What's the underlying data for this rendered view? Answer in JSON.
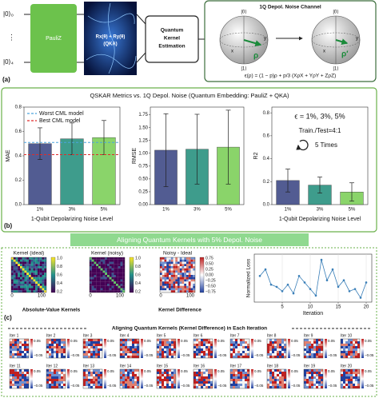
{
  "panel_a": {
    "label": "(a)",
    "qubit_top": "|0⟩₀",
    "qubit_dots": "⋮",
    "qubit_bottom": "|0⟩₄",
    "encoding": "PauliZ",
    "ansatz": "Rx(θ) + Ry(θ)",
    "ansatz_sub": "(QKA)",
    "estimation": [
      "Quantum",
      "Kernel",
      "Estimation"
    ],
    "noise_title": "1Q Depol. Noise Channel",
    "ket0": "|0⟩",
    "ket1": "|1⟩",
    "axis_x": "x",
    "axis_y": "y",
    "rho": "ρ",
    "rho_prime": "ρ′",
    "formula": "ϵ(ρ) = (1 − p)ρ + p/3 (XρX + YρY + ZρZ)"
  },
  "panel_b": {
    "label": "(b)",
    "title": "QSKAR Metrics vs. 1Q Depol. Noise (Quantum Embedding: PauliZ + QKA)"
  },
  "chart_data": [
    {
      "type": "bar",
      "ylabel": "MAE",
      "xlabel": "1-Qubit Depolarizing Noise Level",
      "categories": [
        "1%",
        "3%",
        "5%"
      ],
      "values": [
        0.5,
        0.54,
        0.55
      ],
      "errors": [
        0.13,
        0.13,
        0.14
      ],
      "colors": [
        "#525c92",
        "#3e9c8c",
        "#8ad46a"
      ],
      "ylim": [
        0,
        0.8
      ],
      "yticks": [
        {
          "value": 0,
          "label": "0.0"
        },
        {
          "value": 0.2,
          "label": "0.2"
        },
        {
          "value": 0.4,
          "label": "0.4"
        },
        {
          "value": 0.6,
          "label": "0.6"
        },
        {
          "value": 0.8,
          "label": "0.8"
        }
      ],
      "reference_lines": [
        {
          "name": "Worst CML model",
          "value": 0.51,
          "color": "#4aa3de"
        },
        {
          "name": "Best CML model",
          "value": 0.41,
          "color": "#e02a2a"
        }
      ]
    },
    {
      "type": "bar",
      "ylabel": "RMSE",
      "categories": [
        "1%",
        "3%",
        "5%"
      ],
      "values": [
        1.06,
        1.08,
        1.12
      ],
      "errors": [
        0.71,
        0.68,
        0.72
      ],
      "colors": [
        "#525c92",
        "#3e9c8c",
        "#8ad46a"
      ],
      "ylim": [
        0,
        1.9
      ],
      "yticks": [
        {
          "value": 0,
          "label": "0.00"
        },
        {
          "value": 0.25,
          "label": "0.25"
        },
        {
          "value": 0.5,
          "label": "0.50"
        },
        {
          "value": 0.75,
          "label": "0.75"
        },
        {
          "value": 1,
          "label": "1.00"
        },
        {
          "value": 1.25,
          "label": "1.25"
        },
        {
          "value": 1.5,
          "label": "1.50"
        },
        {
          "value": 1.75,
          "label": "1.75"
        }
      ]
    },
    {
      "type": "bar",
      "ylabel": "R2",
      "xlabel": "1-Qubit Depolarizing Noise Level",
      "categories": [
        "1%",
        "3%",
        "5%"
      ],
      "values": [
        0.21,
        0.17,
        0.11
      ],
      "errors": [
        0.1,
        0.07,
        0.08
      ],
      "colors": [
        "#525c92",
        "#3e9c8c",
        "#8ad46a"
      ],
      "ylim": [
        0,
        0.85
      ],
      "yticks": [
        {
          "value": 0,
          "label": "0.0"
        },
        {
          "value": 0.2,
          "label": "0.2"
        },
        {
          "value": 0.4,
          "label": "0.4"
        },
        {
          "value": 0.6,
          "label": "0.6"
        },
        {
          "value": 0.8,
          "label": "0.8"
        }
      ],
      "annotations": [
        "ϵ = 1%, 3%, 5%",
        "Train./Test=4:1",
        "5 Times"
      ]
    },
    {
      "type": "line",
      "ylabel": "Normalized Loss",
      "xlabel": "Iteration",
      "color": "#3a7fb8",
      "x": [
        1,
        2,
        3,
        4,
        5,
        6,
        7,
        8,
        9,
        10,
        11,
        12,
        13,
        14,
        15,
        16,
        17,
        18,
        19,
        20
      ],
      "values": [
        0.55,
        0.7,
        0.35,
        0.3,
        0.2,
        0.35,
        0.15,
        0.55,
        0.4,
        0.25,
        0.1,
        0.92,
        0.45,
        0.7,
        0.3,
        0.45,
        0.2,
        0.25,
        0.05,
        0.4
      ],
      "xlim": [
        0,
        21
      ],
      "xticks": [
        5,
        10,
        15,
        20
      ],
      "ylim": [
        -0.05,
        1.05
      ],
      "grid": true
    }
  ],
  "panel_c": {
    "label": "(c)",
    "banner": "Aligning Quantum Kernels with 5% Depol. Noise",
    "heatmap_titles": [
      "Kernel (ideal)",
      "Kernel (noisy)",
      "Noisy - Ideal"
    ],
    "heatmap_ticks": [
      "0",
      "100"
    ],
    "kernel_colorbar": [
      "1.0",
      "0.8",
      "0.6",
      "0.4",
      "0.2"
    ],
    "diff_colorbar": [
      "0.75",
      "0.50",
      "0.25",
      "0.00",
      "−0.25",
      "−0.50",
      "−0.75"
    ],
    "caption_abs": "Absolute-Value Kernels",
    "caption_diff": "Kernel Difference",
    "iteration_title": "Aligning Quantum Kernels (Kernel Difference) in Each Iteration",
    "iterations": [
      "Iter 1",
      "Iter 2",
      "Iter 3",
      "Iter 4",
      "Iter 5",
      "Iter 6",
      "Iter 7",
      "Iter 8",
      "Iter 9",
      "Iter 10",
      "Iter 11",
      "Iter 12",
      "Iter 13",
      "Iter 14",
      "Iter 15",
      "Iter 16",
      "Iter 17",
      "Iter 18",
      "Iter 19",
      "Iter 20"
    ],
    "iteration_colorbar": [
      "0.05",
      "−0.05"
    ]
  }
}
